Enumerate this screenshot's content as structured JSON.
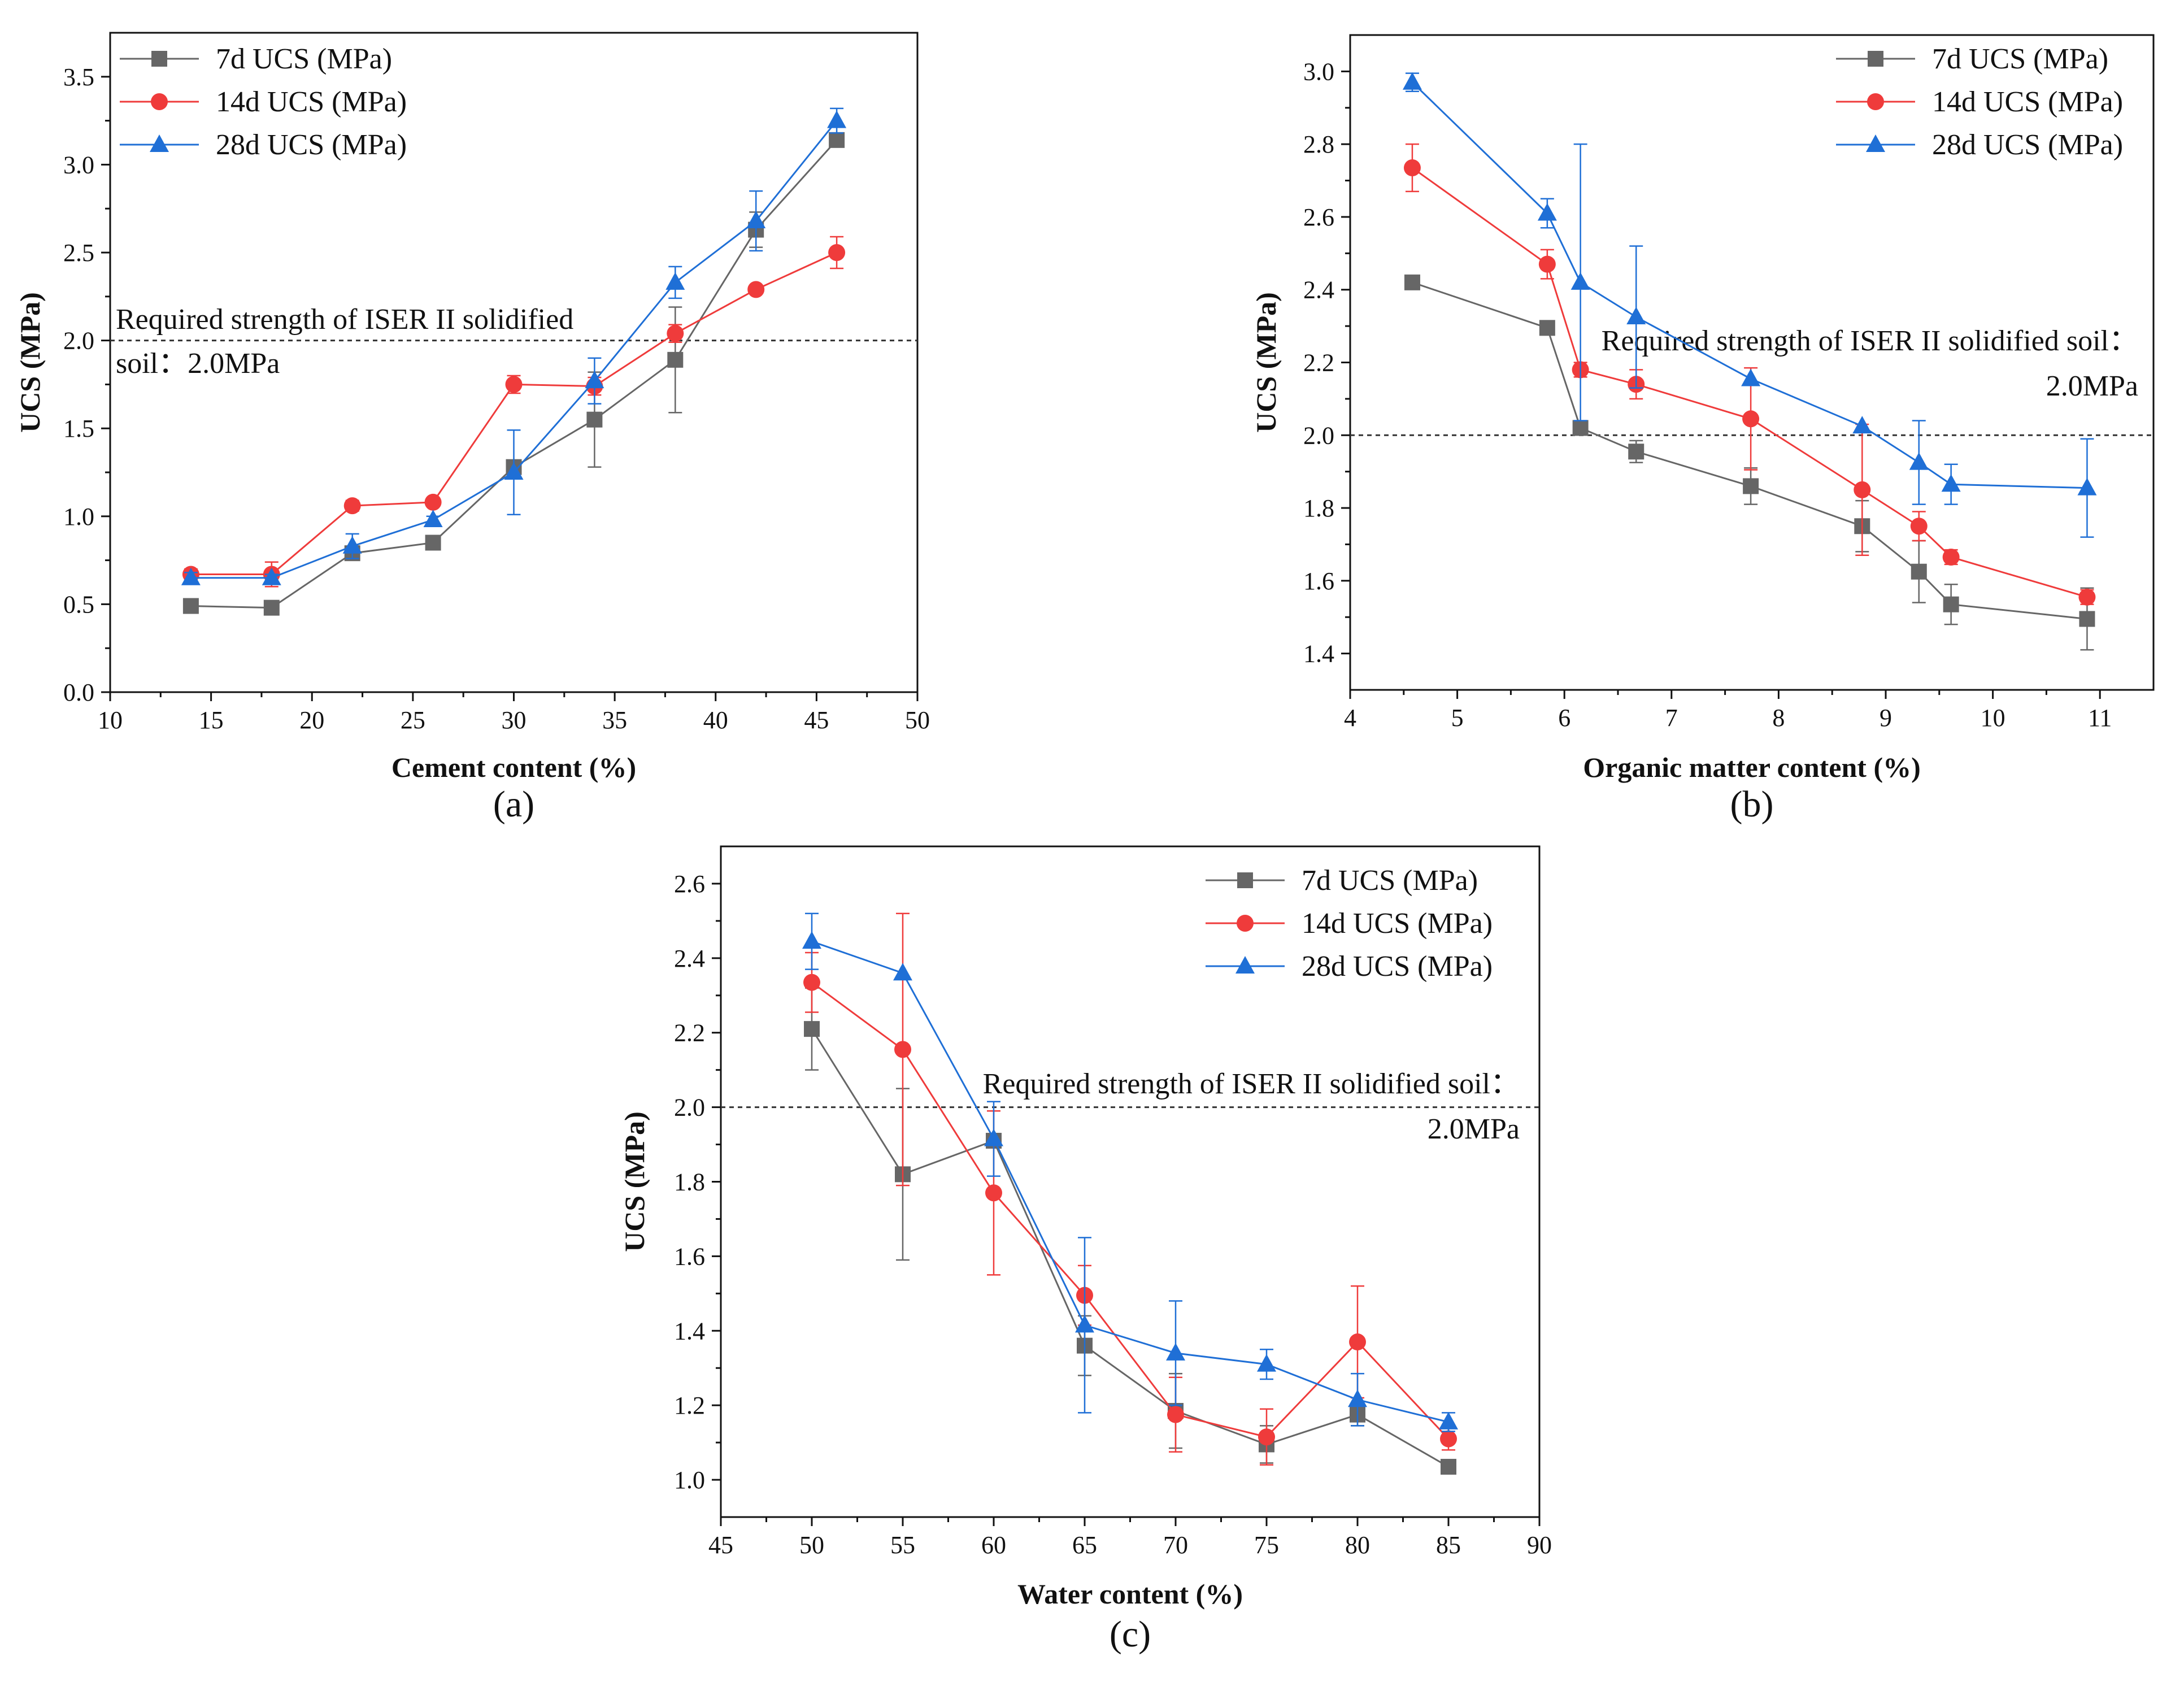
{
  "figure": {
    "panels": [
      "a",
      "b",
      "c"
    ]
  },
  "chart_data": [
    {
      "id": "a",
      "type": "line",
      "panel_label": "(a)",
      "xlabel": "Cement content (%)",
      "ylabel": "UCS (MPa)",
      "xlim": [
        10,
        50
      ],
      "ylim": [
        0,
        3.75
      ],
      "xticks": [
        10,
        15,
        20,
        25,
        30,
        35,
        40,
        45,
        50
      ],
      "yticks": [
        0.0,
        0.5,
        1.0,
        1.5,
        2.0,
        2.5,
        3.0,
        3.5
      ],
      "ytick_labels": [
        "0.0",
        "0.5",
        "1.0",
        "1.5",
        "2.0",
        "2.5",
        "3.0",
        "3.5"
      ],
      "x": [
        14,
        18,
        22,
        26,
        30,
        34,
        38,
        42,
        46
      ],
      "legend_position": "top-left",
      "reference_line": {
        "y": 2.0,
        "label_lines": [
          "Required strength of ISER II solidified",
          "soil：2.0MPa"
        ],
        "label_align": "left"
      },
      "series": [
        {
          "name": "7d UCS (MPa)",
          "marker": "square",
          "color": "#666666",
          "values": [
            0.49,
            0.48,
            0.79,
            0.85,
            1.28,
            1.55,
            1.89,
            2.63,
            3.14
          ],
          "errors": [
            0.0,
            0.0,
            0.0,
            0.0,
            0.02,
            0.27,
            0.3,
            0.1,
            0.02
          ]
        },
        {
          "name": "14d UCS (MPa)",
          "marker": "circle",
          "color": "#ef3b3b",
          "values": [
            0.67,
            0.67,
            1.06,
            1.08,
            1.75,
            1.74,
            2.04,
            2.29,
            2.5
          ],
          "errors": [
            0.03,
            0.07,
            0.03,
            0.02,
            0.05,
            0.05,
            0.05,
            0.02,
            0.09
          ]
        },
        {
          "name": "28d UCS (MPa)",
          "marker": "triangle",
          "color": "#1f6fd6",
          "values": [
            0.65,
            0.65,
            0.83,
            0.98,
            1.25,
            1.77,
            2.33,
            2.68,
            3.25
          ],
          "errors": [
            0.03,
            0.02,
            0.07,
            0.02,
            0.24,
            0.13,
            0.09,
            0.17,
            0.07
          ]
        }
      ]
    },
    {
      "id": "b",
      "type": "line",
      "panel_label": "(b)",
      "xlabel": "Organic matter content (%)",
      "ylabel": "UCS (MPa)",
      "xlim": [
        4,
        11.5
      ],
      "ylim": [
        1.3,
        3.1
      ],
      "xticks": [
        4,
        5,
        6,
        7,
        8,
        9,
        10,
        11
      ],
      "yticks": [
        1.4,
        1.6,
        1.8,
        2.0,
        2.2,
        2.4,
        2.6,
        2.8,
        3.0
      ],
      "ytick_labels": [
        "1.4",
        "1.6",
        "1.8",
        "2.0",
        "2.2",
        "2.4",
        "2.6",
        "2.8",
        "3.0"
      ],
      "x": [
        4.58,
        5.84,
        6.15,
        6.67,
        7.74,
        8.78,
        9.31,
        9.61,
        10.88
      ],
      "legend_position": "top-right",
      "reference_line": {
        "y": 2.0,
        "label_lines": [
          "Required strength of ISER II solidified soil：",
          "2.0MPa"
        ],
        "label_align": "right"
      },
      "series": [
        {
          "name": "7d UCS (MPa)",
          "marker": "square",
          "color": "#666666",
          "values": [
            2.42,
            2.295,
            2.02,
            1.955,
            1.86,
            1.75,
            1.625,
            1.535,
            1.495
          ],
          "errors": [
            0.0,
            0.0,
            0.0,
            0.03,
            0.05,
            0.07,
            0.085,
            0.055,
            0.085
          ]
        },
        {
          "name": "14d UCS (MPa)",
          "marker": "circle",
          "color": "#ef3b3b",
          "values": [
            2.735,
            2.47,
            2.18,
            2.14,
            2.045,
            1.85,
            1.75,
            1.665,
            1.555
          ],
          "errors": [
            0.065,
            0.04,
            0.02,
            0.04,
            0.14,
            0.18,
            0.04,
            0.02,
            0.02
          ]
        },
        {
          "name": "28d UCS (MPa)",
          "marker": "triangle",
          "color": "#1f6fd6",
          "values": [
            2.97,
            2.61,
            2.42,
            2.325,
            2.155,
            2.025,
            1.925,
            1.865,
            1.855
          ],
          "errors": [
            0.025,
            0.04,
            0.38,
            0.195,
            0.0,
            0.0,
            0.115,
            0.055,
            0.135
          ]
        }
      ]
    },
    {
      "id": "c",
      "type": "line",
      "panel_label": "(c)",
      "xlabel": "Water content (%)",
      "ylabel": "UCS (MPa)",
      "xlim": [
        45,
        90
      ],
      "ylim": [
        0.9,
        2.7
      ],
      "xticks": [
        45,
        50,
        55,
        60,
        65,
        70,
        75,
        80,
        85,
        90
      ],
      "yticks": [
        1.0,
        1.2,
        1.4,
        1.6,
        1.8,
        2.0,
        2.2,
        2.4,
        2.6
      ],
      "ytick_labels": [
        "1.0",
        "1.2",
        "1.4",
        "1.6",
        "1.8",
        "2.0",
        "2.2",
        "2.4",
        "2.6"
      ],
      "x": [
        50,
        55,
        60,
        65,
        70,
        75,
        80,
        85
      ],
      "legend_position": "top-right",
      "reference_line": {
        "y": 2.0,
        "label_lines": [
          "Required strength of ISER II solidified soil：",
          "2.0MPa"
        ],
        "label_align": "right"
      },
      "series": [
        {
          "name": "7d UCS (MPa)",
          "marker": "square",
          "color": "#666666",
          "values": [
            2.21,
            1.82,
            1.91,
            1.36,
            1.185,
            1.095,
            1.175,
            1.035
          ],
          "errors": [
            0.11,
            0.23,
            0.0,
            0.08,
            0.1,
            0.05,
            0.03,
            0.0
          ]
        },
        {
          "name": "14d UCS (MPa)",
          "marker": "circle",
          "color": "#ef3b3b",
          "values": [
            2.335,
            2.155,
            1.77,
            1.495,
            1.175,
            1.115,
            1.37,
            1.11
          ],
          "errors": [
            0.08,
            0.365,
            0.22,
            0.08,
            0.1,
            0.075,
            0.15,
            0.03
          ]
        },
        {
          "name": "28d UCS (MPa)",
          "marker": "triangle",
          "color": "#1f6fd6",
          "values": [
            2.445,
            2.36,
            1.915,
            1.415,
            1.34,
            1.31,
            1.215,
            1.155
          ],
          "errors": [
            0.075,
            0.0,
            0.1,
            0.235,
            0.14,
            0.04,
            0.07,
            0.025
          ]
        }
      ]
    }
  ]
}
